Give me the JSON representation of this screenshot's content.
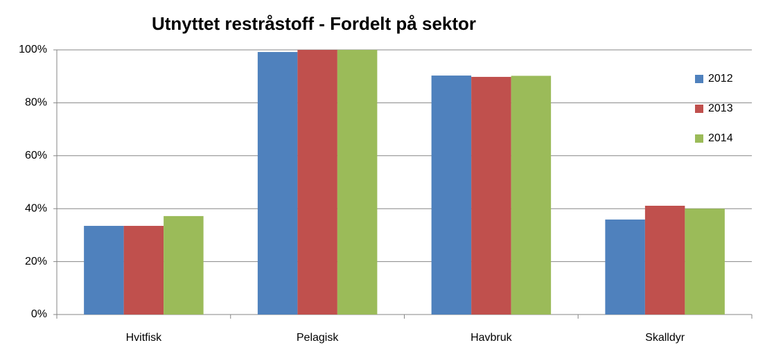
{
  "chart_data": {
    "type": "bar",
    "title": "Utnyttet restråstoff - Fordelt på sektor",
    "categories": [
      "Hvitfisk",
      "Pelagisk",
      "Havbruk",
      "Skalldyr"
    ],
    "series": [
      {
        "name": "2012",
        "color": "#4f81bd",
        "values": [
          33.5,
          99.2,
          90.3,
          35.9
        ]
      },
      {
        "name": "2013",
        "color": "#c0504d",
        "values": [
          33.5,
          100,
          89.8,
          41.1
        ]
      },
      {
        "name": "2014",
        "color": "#9bbb59",
        "values": [
          37.2,
          100,
          90.2,
          40
        ]
      }
    ],
    "ylim": [
      0,
      100
    ],
    "yticks": [
      {
        "value": 0,
        "label": "0%"
      },
      {
        "value": 20,
        "label": "20%"
      },
      {
        "value": 40,
        "label": "40%"
      },
      {
        "value": 60,
        "label": "60%"
      },
      {
        "value": 80,
        "label": "80%"
      },
      {
        "value": 100,
        "label": "100%"
      }
    ],
    "grid": true,
    "legend": "right"
  }
}
